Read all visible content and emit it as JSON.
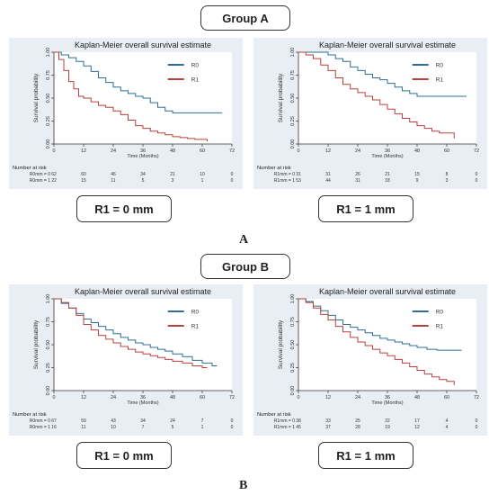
{
  "groups": [
    {
      "title": "Group A",
      "letter": "A"
    },
    {
      "title": "Group B",
      "letter": "B"
    }
  ],
  "colors": {
    "r0": "#2f6f95",
    "r1": "#b7413e",
    "plot_bg": "#e8eef4",
    "outer_bg": "#ffffff"
  },
  "chart_data": [
    {
      "type": "line",
      "title": "Kaplan-Meier overall survival estimate",
      "xlabel": "Time (Months)",
      "ylabel": "Survival probability",
      "xticks": [
        0,
        12,
        24,
        36,
        48,
        60,
        72
      ],
      "yticks": [
        "0.00",
        "0.25",
        "0.50",
        "0.75",
        "1.00"
      ],
      "xlim": [
        0,
        72
      ],
      "ylim": [
        0,
        1
      ],
      "legend_position": "top-right",
      "series": [
        {
          "name": "R0",
          "color": "#2f6f95",
          "x": [
            0,
            3,
            6,
            9,
            12,
            15,
            18,
            21,
            24,
            27,
            30,
            33,
            36,
            39,
            42,
            45,
            48,
            52,
            56,
            60,
            64,
            68
          ],
          "y": [
            1.0,
            0.97,
            0.94,
            0.9,
            0.85,
            0.79,
            0.72,
            0.67,
            0.62,
            0.58,
            0.55,
            0.52,
            0.5,
            0.45,
            0.4,
            0.36,
            0.34,
            0.34,
            0.34,
            0.34,
            0.34,
            0.34
          ]
        },
        {
          "name": "R1",
          "color": "#b7413e",
          "x": [
            0,
            2,
            4,
            6,
            8,
            10,
            12,
            15,
            18,
            21,
            24,
            27,
            30,
            33,
            36,
            39,
            42,
            45,
            48,
            51,
            54,
            57,
            60,
            62
          ],
          "y": [
            1.0,
            0.92,
            0.8,
            0.68,
            0.6,
            0.52,
            0.5,
            0.46,
            0.42,
            0.4,
            0.36,
            0.32,
            0.26,
            0.2,
            0.17,
            0.14,
            0.12,
            0.1,
            0.08,
            0.07,
            0.06,
            0.05,
            0.05,
            0.03
          ]
        }
      ],
      "risk_table": {
        "header": "Number at risk",
        "rows": [
          {
            "label": "R0mm = 0",
            "values": [
              "62",
              "60",
              "46",
              "34",
              "21",
              "10",
              "0"
            ]
          },
          {
            "label": "R0mm = 1",
            "values": [
              "22",
              "15",
              "11",
              "5",
              "3",
              "1",
              "0"
            ]
          }
        ]
      },
      "caption": "R1 = 0 mm"
    },
    {
      "type": "line",
      "title": "Kaplan-Meier overall survival estimate",
      "xlabel": "Time (Months)",
      "ylabel": "Survival probability",
      "xticks": [
        0,
        12,
        24,
        36,
        48,
        60,
        72
      ],
      "yticks": [
        "0.00",
        "0.25",
        "0.50",
        "0.75",
        "1.00"
      ],
      "xlim": [
        0,
        72
      ],
      "ylim": [
        0,
        1
      ],
      "legend_position": "top-right",
      "series": [
        {
          "name": "R0",
          "color": "#2f6f95",
          "x": [
            0,
            3,
            6,
            9,
            12,
            15,
            18,
            21,
            24,
            27,
            30,
            33,
            36,
            39,
            42,
            45,
            48,
            52,
            56,
            60,
            64,
            68
          ],
          "y": [
            1.0,
            1.0,
            1.0,
            1.0,
            0.97,
            0.93,
            0.9,
            0.84,
            0.8,
            0.76,
            0.72,
            0.7,
            0.66,
            0.62,
            0.58,
            0.55,
            0.52,
            0.52,
            0.52,
            0.52,
            0.52,
            0.52
          ]
        },
        {
          "name": "R1",
          "color": "#b7413e",
          "x": [
            0,
            3,
            6,
            9,
            12,
            15,
            18,
            21,
            24,
            27,
            30,
            33,
            36,
            39,
            42,
            45,
            48,
            51,
            54,
            57,
            60,
            63
          ],
          "y": [
            1.0,
            0.97,
            0.93,
            0.86,
            0.8,
            0.72,
            0.65,
            0.6,
            0.56,
            0.52,
            0.48,
            0.43,
            0.38,
            0.33,
            0.28,
            0.24,
            0.2,
            0.17,
            0.14,
            0.12,
            0.12,
            0.06
          ]
        }
      ],
      "risk_table": {
        "header": "Number at risk",
        "rows": [
          {
            "label": "R1mm = 0",
            "values": [
              "31",
              "31",
              "26",
              "21",
              "15",
              "8",
              "0"
            ]
          },
          {
            "label": "R1mm = 1",
            "values": [
              "53",
              "44",
              "31",
              "18",
              "9",
              "3",
              "0"
            ]
          }
        ]
      },
      "caption": "R1 = 1 mm"
    },
    {
      "type": "line",
      "title": "Kaplan-Meier overall survival estimate",
      "xlabel": "Time (Months)",
      "ylabel": "Survival probability",
      "xticks": [
        0,
        12,
        24,
        36,
        48,
        60,
        72
      ],
      "yticks": [
        "0.00",
        "0.25",
        "0.50",
        "0.75",
        "1.00"
      ],
      "xlim": [
        0,
        72
      ],
      "ylim": [
        0,
        1
      ],
      "legend_position": "top-right",
      "series": [
        {
          "name": "R0",
          "color": "#2f6f95",
          "x": [
            0,
            3,
            6,
            9,
            12,
            15,
            18,
            21,
            24,
            27,
            30,
            33,
            36,
            39,
            42,
            45,
            48,
            52,
            56,
            60,
            64,
            66
          ],
          "y": [
            1.0,
            0.95,
            0.9,
            0.84,
            0.78,
            0.74,
            0.7,
            0.66,
            0.62,
            0.58,
            0.55,
            0.52,
            0.5,
            0.47,
            0.45,
            0.43,
            0.4,
            0.37,
            0.33,
            0.3,
            0.27,
            0.27
          ]
        },
        {
          "name": "R1",
          "color": "#b7413e",
          "x": [
            0,
            3,
            6,
            9,
            12,
            15,
            18,
            21,
            24,
            27,
            30,
            33,
            36,
            39,
            42,
            45,
            48,
            52,
            56,
            60,
            62
          ],
          "y": [
            1.0,
            0.96,
            0.9,
            0.82,
            0.72,
            0.66,
            0.6,
            0.56,
            0.52,
            0.48,
            0.45,
            0.42,
            0.4,
            0.38,
            0.36,
            0.34,
            0.32,
            0.3,
            0.27,
            0.25,
            0.25
          ]
        }
      ],
      "risk_table": {
        "header": "Number at risk",
        "rows": [
          {
            "label": "R0mm = 0",
            "values": [
              "67",
              "59",
              "43",
              "34",
              "24",
              "7",
              "0"
            ]
          },
          {
            "label": "R0mm = 1",
            "values": [
              "16",
              "11",
              "10",
              "7",
              "5",
              "1",
              "0"
            ]
          }
        ]
      },
      "caption": "R1 = 0 mm"
    },
    {
      "type": "line",
      "title": "Kaplan-Meier overall survival estimate",
      "xlabel": "Time (Months)",
      "ylabel": "Survival probability",
      "xticks": [
        0,
        12,
        24,
        36,
        48,
        60,
        72
      ],
      "yticks": [
        "0.00",
        "0.25",
        "0.50",
        "0.75",
        "1.00"
      ],
      "xlim": [
        0,
        72
      ],
      "ylim": [
        0,
        1
      ],
      "legend_position": "top-right",
      "series": [
        {
          "name": "R0",
          "color": "#2f6f95",
          "x": [
            0,
            3,
            6,
            9,
            12,
            15,
            18,
            21,
            24,
            27,
            30,
            33,
            36,
            39,
            42,
            45,
            48,
            52,
            56,
            60,
            64,
            66
          ],
          "y": [
            1.0,
            0.97,
            0.92,
            0.87,
            0.82,
            0.77,
            0.72,
            0.69,
            0.66,
            0.63,
            0.6,
            0.57,
            0.55,
            0.53,
            0.51,
            0.49,
            0.47,
            0.45,
            0.44,
            0.44,
            0.44,
            0.44
          ]
        },
        {
          "name": "R1",
          "color": "#b7413e",
          "x": [
            0,
            3,
            6,
            9,
            12,
            15,
            18,
            21,
            24,
            27,
            30,
            33,
            36,
            39,
            42,
            45,
            48,
            51,
            54,
            57,
            60,
            63
          ],
          "y": [
            1.0,
            0.96,
            0.9,
            0.83,
            0.77,
            0.7,
            0.64,
            0.58,
            0.53,
            0.49,
            0.45,
            0.41,
            0.38,
            0.34,
            0.3,
            0.26,
            0.22,
            0.18,
            0.15,
            0.12,
            0.1,
            0.06
          ]
        }
      ],
      "risk_table": {
        "header": "Number at risk",
        "rows": [
          {
            "label": "R1mm = 0",
            "values": [
              "38",
              "33",
              "25",
              "22",
              "17",
              "4",
              "0"
            ]
          },
          {
            "label": "R1mm = 1",
            "values": [
              "45",
              "37",
              "28",
              "19",
              "12",
              "4",
              "0"
            ]
          }
        ]
      },
      "caption": "R1 = 1 mm"
    }
  ]
}
